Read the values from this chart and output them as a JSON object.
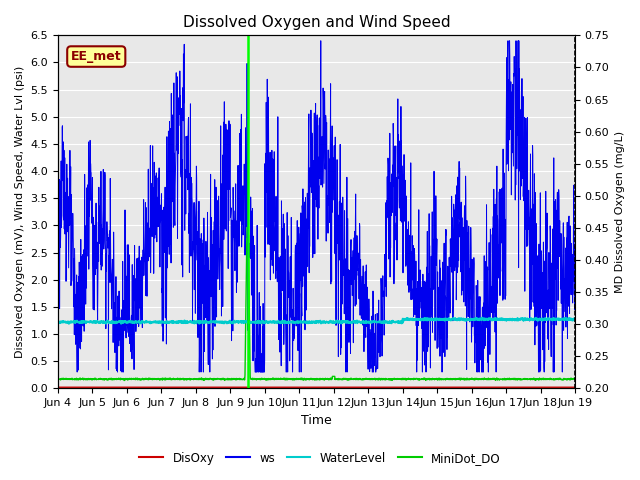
{
  "title": "Dissolved Oxygen and Wind Speed",
  "xlabel": "Time",
  "ylabel_left": "Dissolved Oxygen (mV), Wind Speed, Water Lvl (psi)",
  "ylabel_right": "MD Dissolved Oxygen (mg/L)",
  "ylim_left": [
    0.0,
    6.5
  ],
  "ylim_right": [
    0.2,
    0.75
  ],
  "annotation_text": "EE_met",
  "annotation_color": "#8B0000",
  "annotation_bg": "#FFFF99",
  "annotation_border": "#8B0000",
  "xtick_labels": [
    "Jun 4",
    "Jun 5",
    "Jun 6",
    "Jun 7",
    "Jun 8",
    "Jun 9",
    "Jun 10",
    "Jun 11",
    "Jun 12",
    "Jun 13",
    "Jun 14",
    "Jun 15",
    "Jun 16",
    "Jun 17",
    "Jun 18",
    "Jun 19"
  ],
  "bg_color": "#E8E8E8",
  "grid_color": "#FFFFFF",
  "series": {
    "DisOxy": {
      "color": "#CC0000",
      "lw": 1.0
    },
    "ws": {
      "color": "#0000EE",
      "lw": 0.7
    },
    "WaterLevel": {
      "color": "#00CCCC",
      "lw": 1.5
    },
    "MiniDot_DO": {
      "color": "#00CC00",
      "lw": 1.0
    }
  },
  "vline_color": "#00FF00",
  "vline_lw": 1.8,
  "vline_x": 5.5
}
